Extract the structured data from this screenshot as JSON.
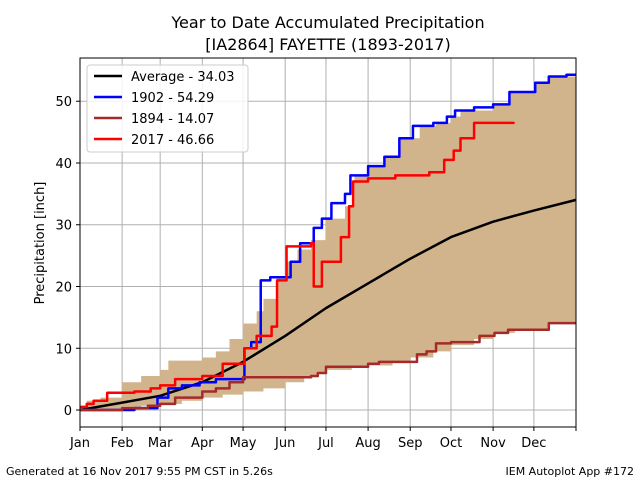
{
  "chart_data": {
    "type": "line",
    "title": "Year to Date Accumulated Precipitation",
    "subtitle": "[IA2864] FAYETTE (1893-2017)",
    "xlabel": "",
    "ylabel": "Precipitation [inch]",
    "xlim": [
      0,
      365
    ],
    "ylim": [
      -2.75,
      57
    ],
    "grid": true,
    "legend_position": "top-left",
    "x_ticks": [
      {
        "day": 0,
        "label": "Jan"
      },
      {
        "day": 31,
        "label": "Feb"
      },
      {
        "day": 59,
        "label": "Mar"
      },
      {
        "day": 90,
        "label": "Apr"
      },
      {
        "day": 120,
        "label": "May"
      },
      {
        "day": 151,
        "label": "Jun"
      },
      {
        "day": 181,
        "label": "Jul"
      },
      {
        "day": 212,
        "label": "Aug"
      },
      {
        "day": 243,
        "label": "Sep"
      },
      {
        "day": 273,
        "label": "Oct"
      },
      {
        "day": 304,
        "label": "Nov"
      },
      {
        "day": 334,
        "label": "Dec"
      },
      {
        "day": 365,
        "label": ""
      }
    ],
    "y_ticks": [
      0,
      10,
      20,
      30,
      40,
      50
    ],
    "band": {
      "color": "#d2b48c",
      "max": [
        [
          0,
          0.5
        ],
        [
          5,
          1.5
        ],
        [
          15,
          2
        ],
        [
          31,
          4.5
        ],
        [
          45,
          5.5
        ],
        [
          59,
          6.5
        ],
        [
          65,
          8
        ],
        [
          90,
          8.5
        ],
        [
          100,
          9.5
        ],
        [
          110,
          11.5
        ],
        [
          120,
          14
        ],
        [
          130,
          16
        ],
        [
          135,
          18
        ],
        [
          145,
          21.5
        ],
        [
          151,
          24
        ],
        [
          160,
          26
        ],
        [
          170,
          27.5
        ],
        [
          181,
          31
        ],
        [
          195,
          33
        ],
        [
          202,
          38
        ],
        [
          212,
          39.5
        ],
        [
          224,
          41
        ],
        [
          235,
          44
        ],
        [
          250,
          46
        ],
        [
          262,
          46.5
        ],
        [
          273,
          47.5
        ],
        [
          280,
          48.5
        ],
        [
          304,
          49.5
        ],
        [
          316,
          51.5
        ],
        [
          335,
          53
        ],
        [
          345,
          54
        ],
        [
          365,
          54.29
        ]
      ],
      "min": [
        [
          0,
          0
        ],
        [
          31,
          0.3
        ],
        [
          45,
          0.7
        ],
        [
          59,
          1
        ],
        [
          75,
          1.5
        ],
        [
          90,
          2
        ],
        [
          105,
          2.5
        ],
        [
          120,
          3
        ],
        [
          135,
          3.5
        ],
        [
          151,
          4.5
        ],
        [
          165,
          5.3
        ],
        [
          175,
          6
        ],
        [
          181,
          6.5
        ],
        [
          200,
          7
        ],
        [
          212,
          7.2
        ],
        [
          230,
          7.6
        ],
        [
          243,
          8.5
        ],
        [
          260,
          9.5
        ],
        [
          273,
          10.5
        ],
        [
          290,
          11.5
        ],
        [
          304,
          12.5
        ],
        [
          320,
          12.8
        ],
        [
          334,
          13
        ],
        [
          345,
          14
        ],
        [
          365,
          14.07
        ]
      ]
    },
    "series": [
      {
        "name": "Average - 34.03",
        "color": "#000000",
        "step": false,
        "points": [
          [
            0,
            0
          ],
          [
            31,
            1.2
          ],
          [
            59,
            2.3
          ],
          [
            90,
            4.5
          ],
          [
            120,
            7.8
          ],
          [
            151,
            12
          ],
          [
            181,
            16.5
          ],
          [
            212,
            20.5
          ],
          [
            243,
            24.5
          ],
          [
            273,
            28
          ],
          [
            304,
            30.5
          ],
          [
            334,
            32.3
          ],
          [
            365,
            34.03
          ]
        ]
      },
      {
        "name": "1902 - 54.29",
        "color": "#0000ff",
        "step": true,
        "points": [
          [
            0,
            0
          ],
          [
            18,
            0
          ],
          [
            40,
            0.3
          ],
          [
            57,
            2
          ],
          [
            65,
            3.5
          ],
          [
            75,
            4
          ],
          [
            88,
            4.5
          ],
          [
            100,
            5
          ],
          [
            121,
            10
          ],
          [
            126,
            11
          ],
          [
            133,
            21
          ],
          [
            140,
            21.5
          ],
          [
            155,
            24
          ],
          [
            162,
            27
          ],
          [
            172,
            29.5
          ],
          [
            178,
            31
          ],
          [
            185,
            33.5
          ],
          [
            195,
            35
          ],
          [
            199,
            38
          ],
          [
            212,
            39.5
          ],
          [
            224,
            41
          ],
          [
            235,
            44
          ],
          [
            245,
            46
          ],
          [
            260,
            46.5
          ],
          [
            270,
            47.5
          ],
          [
            276,
            48.5
          ],
          [
            290,
            49
          ],
          [
            304,
            49.5
          ],
          [
            316,
            51.5
          ],
          [
            335,
            53
          ],
          [
            345,
            54
          ],
          [
            358,
            54.29
          ],
          [
            365,
            54.29
          ]
        ]
      },
      {
        "name": "1894 - 14.07",
        "color": "#a52a2a",
        "step": true,
        "points": [
          [
            0,
            0
          ],
          [
            31,
            0.3
          ],
          [
            50,
            0.7
          ],
          [
            59,
            1
          ],
          [
            70,
            2
          ],
          [
            90,
            3
          ],
          [
            100,
            3.5
          ],
          [
            110,
            4.5
          ],
          [
            120,
            5.3
          ],
          [
            170,
            5.5
          ],
          [
            175,
            6
          ],
          [
            181,
            7
          ],
          [
            212,
            7.5
          ],
          [
            220,
            7.8
          ],
          [
            248,
            9
          ],
          [
            255,
            9.5
          ],
          [
            262,
            10.8
          ],
          [
            273,
            11
          ],
          [
            294,
            12
          ],
          [
            305,
            12.5
          ],
          [
            315,
            13
          ],
          [
            345,
            14.07
          ],
          [
            365,
            14.07
          ]
        ]
      },
      {
        "name": "2017 - 46.66",
        "color": "#ff0000",
        "step": true,
        "points": [
          [
            0,
            0.5
          ],
          [
            5,
            1
          ],
          [
            10,
            1.5
          ],
          [
            20,
            2.8
          ],
          [
            40,
            3
          ],
          [
            52,
            3.5
          ],
          [
            59,
            4
          ],
          [
            70,
            5
          ],
          [
            90,
            5.5
          ],
          [
            105,
            7.5
          ],
          [
            121,
            10
          ],
          [
            130,
            12
          ],
          [
            141,
            13.5
          ],
          [
            145,
            21
          ],
          [
            152,
            26.5
          ],
          [
            170,
            27
          ],
          [
            172,
            20
          ],
          [
            178,
            24
          ],
          [
            192,
            28
          ],
          [
            198,
            33
          ],
          [
            201,
            37
          ],
          [
            212,
            37.5
          ],
          [
            232,
            38
          ],
          [
            257,
            38.5
          ],
          [
            268,
            40.5
          ],
          [
            275,
            42
          ],
          [
            280,
            44
          ],
          [
            290,
            46.5
          ],
          [
            305,
            46.5
          ],
          [
            319,
            46.66
          ]
        ]
      }
    ]
  },
  "footer": {
    "left": "Generated at 16 Nov 2017 9:55 PM CST in 5.26s",
    "right": "IEM Autoplot App #172"
  }
}
